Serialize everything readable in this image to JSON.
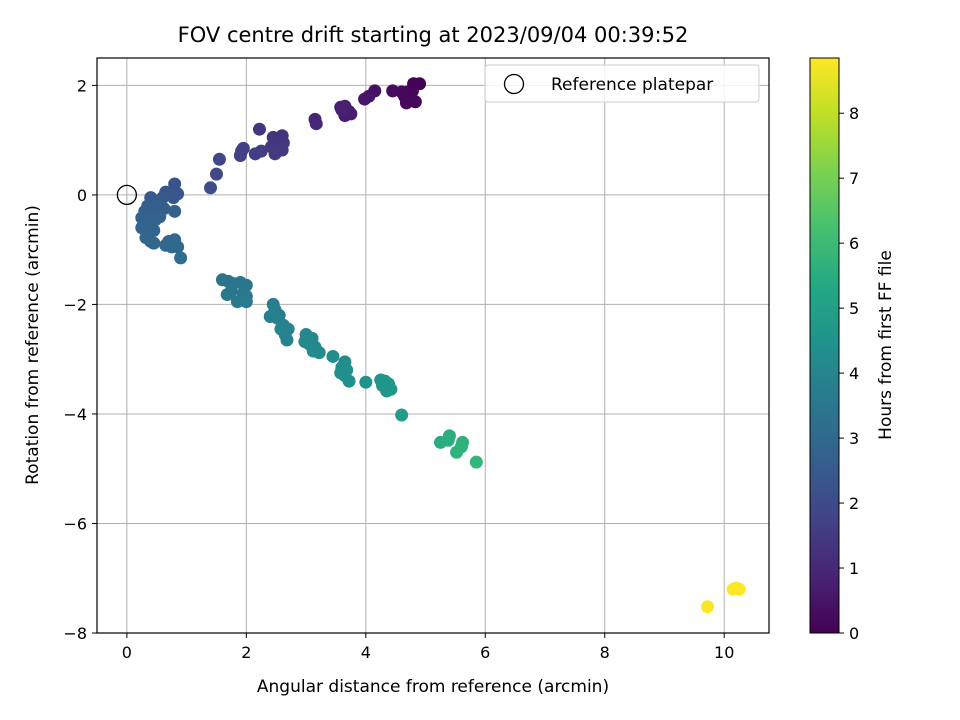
{
  "chart_data": {
    "type": "scatter",
    "title": "FOV centre drift starting at 2023/09/04 00:39:52",
    "xlabel": "Angular distance from reference (arcmin)",
    "ylabel": "Rotation from reference (arcmin)",
    "xlim": [
      -0.5,
      10.75
    ],
    "ylim": [
      -8.0,
      2.5
    ],
    "xticks": [
      0,
      2,
      4,
      6,
      8,
      10
    ],
    "yticks": [
      -8,
      -6,
      -4,
      -2,
      0,
      2
    ],
    "grid": true,
    "legend": {
      "position": "top-right",
      "entries": [
        "Reference platepar"
      ]
    },
    "reference_point": {
      "x": 0,
      "y": 0,
      "label": "Reference platepar"
    },
    "colorbar": {
      "label": "Hours from first FF file",
      "range": [
        0,
        8.85
      ],
      "ticks": [
        0,
        1,
        2,
        3,
        4,
        5,
        6,
        7,
        8
      ],
      "colormap": "viridis"
    },
    "series": [
      {
        "points": [
          {
            "x": 4.9,
            "y": 2.03,
            "c": 0.02
          },
          {
            "x": 4.8,
            "y": 2.03,
            "c": 0.05
          },
          {
            "x": 4.78,
            "y": 1.9,
            "c": 0.08
          },
          {
            "x": 4.7,
            "y": 1.88,
            "c": 0.1
          },
          {
            "x": 4.65,
            "y": 1.8,
            "c": 0.12
          },
          {
            "x": 4.83,
            "y": 1.7,
            "c": 0.15
          },
          {
            "x": 4.68,
            "y": 1.68,
            "c": 0.18
          },
          {
            "x": 4.6,
            "y": 1.88,
            "c": 0.2
          },
          {
            "x": 4.45,
            "y": 1.9,
            "c": 0.25
          },
          {
            "x": 4.15,
            "y": 1.9,
            "c": 0.4
          },
          {
            "x": 4.05,
            "y": 1.8,
            "c": 0.45
          },
          {
            "x": 3.98,
            "y": 1.75,
            "c": 0.5
          },
          {
            "x": 3.72,
            "y": 1.52,
            "c": 0.65
          },
          {
            "x": 3.65,
            "y": 1.45,
            "c": 0.7
          },
          {
            "x": 3.58,
            "y": 1.6,
            "c": 0.75
          },
          {
            "x": 3.65,
            "y": 1.62,
            "c": 0.78
          },
          {
            "x": 3.75,
            "y": 1.48,
            "c": 0.72
          },
          {
            "x": 3.6,
            "y": 1.55,
            "c": 0.8
          },
          {
            "x": 3.15,
            "y": 1.38,
            "c": 0.95
          },
          {
            "x": 3.17,
            "y": 1.3,
            "c": 1.0
          },
          {
            "x": 2.6,
            "y": 1.08,
            "c": 1.25
          },
          {
            "x": 2.55,
            "y": 1.0,
            "c": 1.3
          },
          {
            "x": 2.45,
            "y": 1.05,
            "c": 1.35
          },
          {
            "x": 2.62,
            "y": 0.95,
            "c": 1.38
          },
          {
            "x": 2.5,
            "y": 0.92,
            "c": 1.4
          },
          {
            "x": 2.42,
            "y": 0.88,
            "c": 1.42
          },
          {
            "x": 2.6,
            "y": 0.82,
            "c": 1.45
          },
          {
            "x": 2.48,
            "y": 0.75,
            "c": 1.48
          },
          {
            "x": 2.22,
            "y": 1.2,
            "c": 1.32
          },
          {
            "x": 2.25,
            "y": 0.8,
            "c": 1.55
          },
          {
            "x": 2.15,
            "y": 0.75,
            "c": 1.6
          },
          {
            "x": 1.92,
            "y": 0.8,
            "c": 1.7
          },
          {
            "x": 1.9,
            "y": 0.72,
            "c": 1.72
          },
          {
            "x": 1.95,
            "y": 0.85,
            "c": 1.68
          },
          {
            "x": 1.55,
            "y": 0.65,
            "c": 1.85
          },
          {
            "x": 1.5,
            "y": 0.38,
            "c": 1.95
          },
          {
            "x": 1.4,
            "y": 0.13,
            "c": 2.05
          },
          {
            "x": 0.8,
            "y": 0.2,
            "c": 2.3
          },
          {
            "x": 0.85,
            "y": 0.02,
            "c": 2.35
          },
          {
            "x": 0.65,
            "y": 0.05,
            "c": 2.38
          },
          {
            "x": 0.72,
            "y": 0.0,
            "c": 2.4
          },
          {
            "x": 0.78,
            "y": -0.05,
            "c": 2.42
          },
          {
            "x": 0.6,
            "y": -0.05,
            "c": 2.45
          },
          {
            "x": 0.55,
            "y": -0.1,
            "c": 2.48
          },
          {
            "x": 0.4,
            "y": -0.05,
            "c": 2.5
          },
          {
            "x": 0.45,
            "y": -0.15,
            "c": 2.55
          },
          {
            "x": 0.35,
            "y": -0.2,
            "c": 2.58
          },
          {
            "x": 0.52,
            "y": -0.2,
            "c": 2.6
          },
          {
            "x": 0.62,
            "y": -0.25,
            "c": 2.62
          },
          {
            "x": 0.8,
            "y": -0.3,
            "c": 2.65
          },
          {
            "x": 0.3,
            "y": -0.3,
            "c": 2.68
          },
          {
            "x": 0.42,
            "y": -0.32,
            "c": 2.7
          },
          {
            "x": 0.55,
            "y": -0.4,
            "c": 2.72
          },
          {
            "x": 0.35,
            "y": -0.42,
            "c": 2.74
          },
          {
            "x": 0.25,
            "y": -0.42,
            "c": 2.76
          },
          {
            "x": 0.48,
            "y": -0.45,
            "c": 2.78
          },
          {
            "x": 0.32,
            "y": -0.52,
            "c": 2.8
          },
          {
            "x": 0.4,
            "y": -0.58,
            "c": 2.82
          },
          {
            "x": 0.25,
            "y": -0.6,
            "c": 2.84
          },
          {
            "x": 0.45,
            "y": -0.65,
            "c": 2.86
          },
          {
            "x": 0.35,
            "y": -0.7,
            "c": 2.88
          },
          {
            "x": 0.32,
            "y": -0.78,
            "c": 2.9
          },
          {
            "x": 0.4,
            "y": -0.85,
            "c": 2.92
          },
          {
            "x": 0.45,
            "y": -0.88,
            "c": 2.94
          },
          {
            "x": 0.7,
            "y": -0.85,
            "c": 2.96
          },
          {
            "x": 0.8,
            "y": -0.82,
            "c": 2.98
          },
          {
            "x": 0.65,
            "y": -0.92,
            "c": 3.0
          },
          {
            "x": 0.75,
            "y": -0.95,
            "c": 3.02
          },
          {
            "x": 0.85,
            "y": -0.95,
            "c": 3.04
          },
          {
            "x": 0.9,
            "y": -1.15,
            "c": 3.1
          },
          {
            "x": 1.6,
            "y": -1.55,
            "c": 3.35
          },
          {
            "x": 1.7,
            "y": -1.58,
            "c": 3.38
          },
          {
            "x": 1.78,
            "y": -1.62,
            "c": 3.4
          },
          {
            "x": 1.9,
            "y": -1.6,
            "c": 3.42
          },
          {
            "x": 2.0,
            "y": -1.65,
            "c": 3.44
          },
          {
            "x": 1.75,
            "y": -1.75,
            "c": 3.46
          },
          {
            "x": 1.95,
            "y": -1.8,
            "c": 3.48
          },
          {
            "x": 1.68,
            "y": -1.82,
            "c": 3.5
          },
          {
            "x": 2.0,
            "y": -1.85,
            "c": 3.52
          },
          {
            "x": 1.85,
            "y": -1.95,
            "c": 3.54
          },
          {
            "x": 2.0,
            "y": -1.95,
            "c": 3.56
          },
          {
            "x": 2.45,
            "y": -2.0,
            "c": 3.75
          },
          {
            "x": 2.48,
            "y": -2.1,
            "c": 3.78
          },
          {
            "x": 2.55,
            "y": -2.2,
            "c": 3.8
          },
          {
            "x": 2.4,
            "y": -2.22,
            "c": 3.82
          },
          {
            "x": 2.52,
            "y": -2.25,
            "c": 3.84
          },
          {
            "x": 2.62,
            "y": -2.38,
            "c": 3.86
          },
          {
            "x": 2.7,
            "y": -2.45,
            "c": 3.88
          },
          {
            "x": 2.58,
            "y": -2.45,
            "c": 3.9
          },
          {
            "x": 2.65,
            "y": -2.55,
            "c": 3.92
          },
          {
            "x": 2.68,
            "y": -2.65,
            "c": 3.94
          },
          {
            "x": 3.0,
            "y": -2.55,
            "c": 4.05
          },
          {
            "x": 3.1,
            "y": -2.62,
            "c": 4.08
          },
          {
            "x": 2.98,
            "y": -2.68,
            "c": 4.1
          },
          {
            "x": 3.05,
            "y": -2.72,
            "c": 4.12
          },
          {
            "x": 3.15,
            "y": -2.78,
            "c": 4.14
          },
          {
            "x": 3.12,
            "y": -2.85,
            "c": 4.16
          },
          {
            "x": 3.22,
            "y": -2.88,
            "c": 4.18
          },
          {
            "x": 3.45,
            "y": -2.95,
            "c": 4.25
          },
          {
            "x": 3.65,
            "y": -3.05,
            "c": 4.3
          },
          {
            "x": 3.6,
            "y": -3.15,
            "c": 4.32
          },
          {
            "x": 3.68,
            "y": -3.2,
            "c": 4.34
          },
          {
            "x": 3.58,
            "y": -3.25,
            "c": 4.36
          },
          {
            "x": 3.65,
            "y": -3.3,
            "c": 4.38
          },
          {
            "x": 3.72,
            "y": -3.4,
            "c": 4.4
          },
          {
            "x": 4.0,
            "y": -3.42,
            "c": 4.5
          },
          {
            "x": 4.25,
            "y": -3.38,
            "c": 4.55
          },
          {
            "x": 4.32,
            "y": -3.4,
            "c": 4.58
          },
          {
            "x": 4.28,
            "y": -3.48,
            "c": 4.6
          },
          {
            "x": 4.38,
            "y": -3.45,
            "c": 4.62
          },
          {
            "x": 4.35,
            "y": -3.58,
            "c": 4.64
          },
          {
            "x": 4.42,
            "y": -3.55,
            "c": 4.66
          },
          {
            "x": 4.6,
            "y": -4.02,
            "c": 4.85
          },
          {
            "x": 5.25,
            "y": -4.52,
            "c": 5.5
          },
          {
            "x": 5.4,
            "y": -4.4,
            "c": 5.55
          },
          {
            "x": 5.38,
            "y": -4.48,
            "c": 5.58
          },
          {
            "x": 5.62,
            "y": -4.52,
            "c": 5.62
          },
          {
            "x": 5.6,
            "y": -4.6,
            "c": 5.65
          },
          {
            "x": 5.52,
            "y": -4.7,
            "c": 5.68
          },
          {
            "x": 5.85,
            "y": -4.88,
            "c": 5.8
          },
          {
            "x": 9.72,
            "y": -7.52,
            "c": 8.8
          },
          {
            "x": 10.15,
            "y": -7.2,
            "c": 8.82
          },
          {
            "x": 10.25,
            "y": -7.2,
            "c": 8.84
          },
          {
            "x": 10.2,
            "y": -7.18,
            "c": 8.83
          }
        ]
      }
    ]
  }
}
